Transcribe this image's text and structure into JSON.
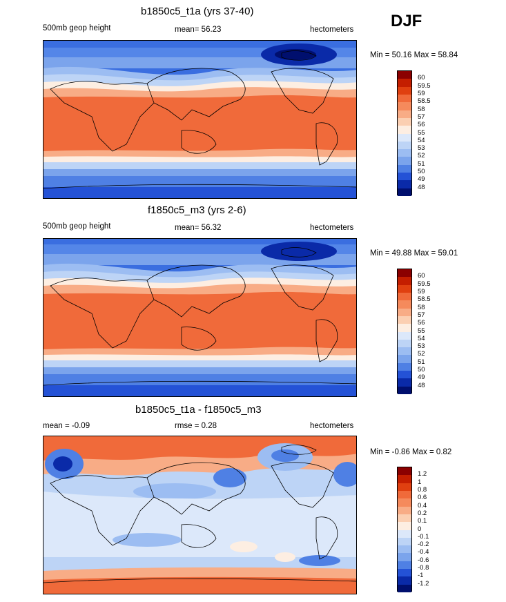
{
  "season": "DJF",
  "panels": [
    {
      "title": "b1850c5_t1a (yrs 37-40)",
      "left_label": "500mb geop height",
      "mean_label": "mean=  56.23",
      "units": "hectometers",
      "minmax": "Min =  50.16 Max =  58.84",
      "colorbar": {
        "labels": [
          "60",
          "59.5",
          "59",
          "58.5",
          "58",
          "57",
          "56",
          "55",
          "54",
          "53",
          "52",
          "51",
          "50",
          "49",
          "48"
        ],
        "colors": [
          "#8b0000",
          "#c41e00",
          "#e04010",
          "#f06a3a",
          "#f58a5c",
          "#f8ac86",
          "#fbcfb2",
          "#fdeee2",
          "#dce8fa",
          "#bdd4f6",
          "#9cbdf2",
          "#7ba4ec",
          "#4f80e4",
          "#2452d6",
          "#0a2aa8",
          "#000f6e"
        ]
      }
    },
    {
      "title": "f1850c5_m3 (yrs 2-6)",
      "left_label": "500mb geop height",
      "mean_label": "mean=  56.32",
      "units": "hectometers",
      "minmax": "Min =  49.88 Max =  59.01",
      "colorbar": {
        "labels": [
          "60",
          "59.5",
          "59",
          "58.5",
          "58",
          "57",
          "56",
          "55",
          "54",
          "53",
          "52",
          "51",
          "50",
          "49",
          "48"
        ],
        "colors": [
          "#8b0000",
          "#c41e00",
          "#e04010",
          "#f06a3a",
          "#f58a5c",
          "#f8ac86",
          "#fbcfb2",
          "#fdeee2",
          "#dce8fa",
          "#bdd4f6",
          "#9cbdf2",
          "#7ba4ec",
          "#4f80e4",
          "#2452d6",
          "#0a2aa8",
          "#000f6e"
        ]
      }
    },
    {
      "title": "b1850c5_t1a - f1850c5_m3",
      "left_label": "mean =  -0.09",
      "mean_label": "rmse =   0.28",
      "units": "hectometers",
      "minmax": "Min =  -0.86 Max =   0.82",
      "colorbar": {
        "labels": [
          "1.2",
          "1",
          "0.8",
          "0.6",
          "0.4",
          "0.2",
          "0.1",
          "0",
          "-0.1",
          "-0.2",
          "-0.4",
          "-0.6",
          "-0.8",
          "-1",
          "-1.2"
        ],
        "colors": [
          "#8b0000",
          "#c41e00",
          "#e04010",
          "#f06a3a",
          "#f58a5c",
          "#f8ac86",
          "#fbcfb2",
          "#fdeee2",
          "#dce8fa",
          "#bdd4f6",
          "#9cbdf2",
          "#7ba4ec",
          "#4f80e4",
          "#2452d6",
          "#0a2aa8",
          "#000f6e"
        ]
      }
    }
  ]
}
